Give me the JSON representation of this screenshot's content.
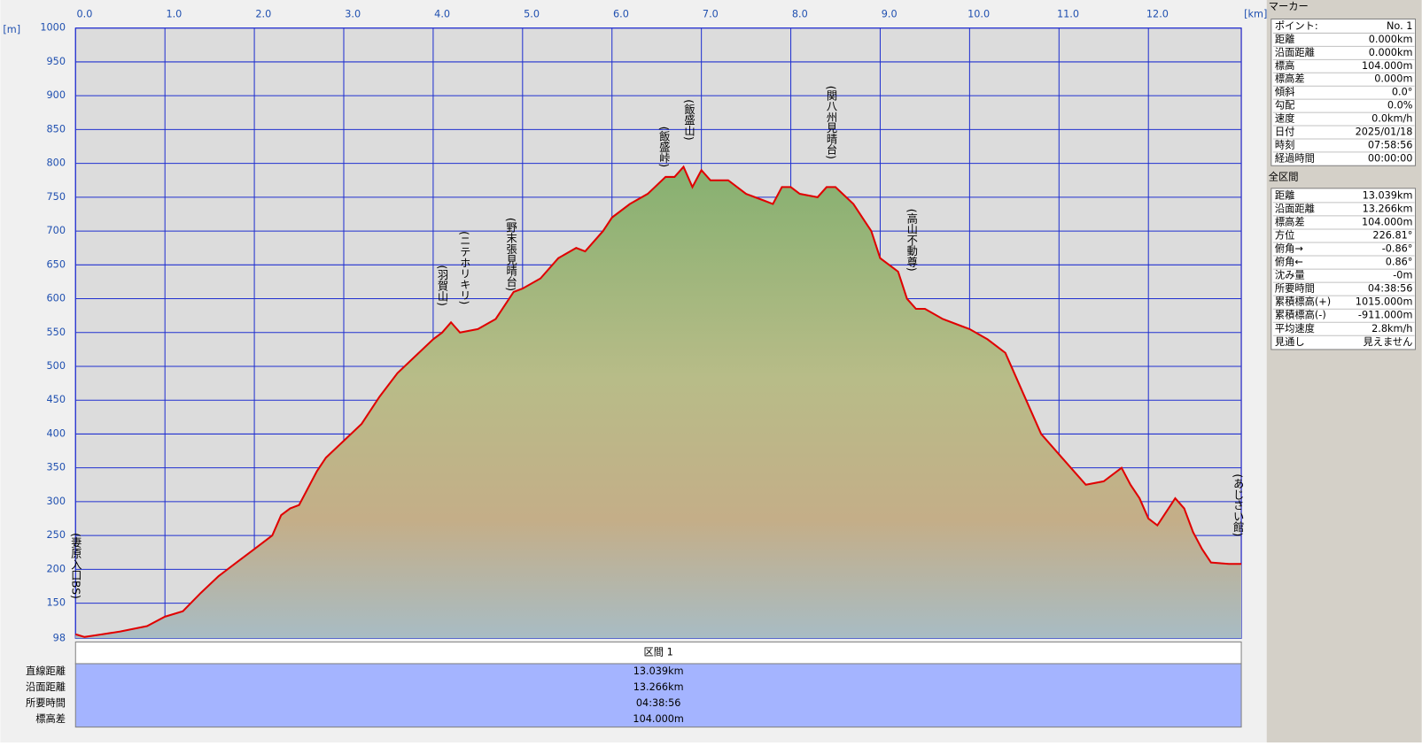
{
  "chart_data": {
    "type": "area",
    "x_unit": "[km]",
    "y_unit": "[m]",
    "series": [
      {
        "name": "標高",
        "color": "#e00000",
        "x": [
          0,
          0.1,
          0.3,
          0.5,
          0.8,
          1.0,
          1.2,
          1.4,
          1.6,
          1.8,
          2.0,
          2.2,
          2.3,
          2.4,
          2.5,
          2.6,
          2.7,
          2.8,
          3.0,
          3.2,
          3.4,
          3.6,
          3.8,
          4.0,
          4.1,
          4.2,
          4.3,
          4.5,
          4.7,
          4.9,
          5.0,
          5.2,
          5.4,
          5.6,
          5.7,
          5.9,
          6.0,
          6.2,
          6.4,
          6.6,
          6.7,
          6.8,
          6.9,
          7.0,
          7.1,
          7.3,
          7.5,
          7.7,
          7.8,
          7.9,
          8.0,
          8.1,
          8.3,
          8.4,
          8.5,
          8.7,
          8.9,
          9.0,
          9.1,
          9.2,
          9.3,
          9.4,
          9.5,
          9.7,
          9.9,
          10.0,
          10.2,
          10.4,
          10.6,
          10.8,
          11.0,
          11.2,
          11.3,
          11.5,
          11.7,
          11.8,
          11.9,
          12.0,
          12.1,
          12.3,
          12.4,
          12.5,
          12.6,
          12.7,
          12.9,
          13.039
        ],
        "values": [
          104,
          100,
          104,
          108,
          116,
          130,
          138,
          165,
          190,
          210,
          230,
          250,
          280,
          290,
          295,
          320,
          345,
          365,
          390,
          415,
          455,
          490,
          515,
          540,
          550,
          565,
          550,
          555,
          570,
          610,
          615,
          630,
          660,
          675,
          670,
          700,
          720,
          740,
          755,
          780,
          780,
          795,
          765,
          790,
          775,
          775,
          755,
          745,
          740,
          765,
          765,
          755,
          750,
          765,
          765,
          740,
          700,
          660,
          650,
          640,
          600,
          585,
          585,
          570,
          560,
          555,
          540,
          520,
          460,
          400,
          370,
          340,
          325,
          330,
          350,
          325,
          305,
          275,
          265,
          305,
          290,
          255,
          230,
          210,
          208,
          208
        ]
      }
    ],
    "xlim": [
      0,
      13.039
    ],
    "ylim": [
      98,
      1000
    ],
    "xticks": [
      {
        "value": 0,
        "label": "0.0"
      },
      {
        "value": 1,
        "label": "1.0"
      },
      {
        "value": 2,
        "label": "2.0"
      },
      {
        "value": 3,
        "label": "3.0"
      },
      {
        "value": 4,
        "label": "4.0"
      },
      {
        "value": 5,
        "label": "5.0"
      },
      {
        "value": 6,
        "label": "6.0"
      },
      {
        "value": 7,
        "label": "7.0"
      },
      {
        "value": 8,
        "label": "8.0"
      },
      {
        "value": 9,
        "label": "9.0"
      },
      {
        "value": 10,
        "label": "10.0"
      },
      {
        "value": 11,
        "label": "11.0"
      },
      {
        "value": 12,
        "label": "12.0"
      }
    ],
    "yticks": [
      98,
      150,
      200,
      250,
      300,
      350,
      400,
      450,
      500,
      550,
      600,
      650,
      700,
      750,
      800,
      850,
      900,
      950,
      1000
    ],
    "grid": true,
    "annotations": [
      {
        "text": "(妻原入口BS)",
        "x": 0
      },
      {
        "text": "(羽賀山)",
        "x": 4.1
      },
      {
        "text": "(ニテホリキリ)",
        "x": 4.35
      },
      {
        "text": "(野末張見晴台)",
        "x": 4.87
      },
      {
        "text": "(飯盛峠)",
        "x": 6.58
      },
      {
        "text": "(飯盛山)",
        "x": 6.86
      },
      {
        "text": "(関八州見晴台)",
        "x": 8.45
      },
      {
        "text": "(高山不動尊)",
        "x": 9.35
      },
      {
        "text": "(あじさい館)",
        "x": 13.0
      }
    ]
  },
  "marker_panel": {
    "title": "マーカー",
    "rows": [
      [
        "ポイント:",
        "No. 1"
      ],
      [
        "距離",
        "0.000km"
      ],
      [
        "沿面距離",
        "0.000km"
      ],
      [
        "標高",
        "104.000m"
      ],
      [
        "標高差",
        "0.000m"
      ],
      [
        "傾斜",
        "0.0°"
      ],
      [
        "勾配",
        "0.0%"
      ],
      [
        "速度",
        "0.0km/h"
      ],
      [
        "日付",
        "2025/01/18"
      ],
      [
        "時刻",
        "07:58:56"
      ],
      [
        "経過時間",
        "00:00:00"
      ]
    ]
  },
  "total_panel": {
    "title": "全区間",
    "rows": [
      [
        "距離",
        "13.039km"
      ],
      [
        "沿面距離",
        "13.266km"
      ],
      [
        "標高差",
        "104.000m"
      ],
      [
        "方位",
        "226.81°"
      ],
      [
        "俯角→",
        "-0.86°"
      ],
      [
        "俯角←",
        "0.86°"
      ],
      [
        "沈み量",
        "-0m"
      ],
      [
        "所要時間",
        "04:38:56"
      ],
      [
        "累積標高(+)",
        "1015.000m"
      ],
      [
        "累積標高(-)",
        "-911.000m"
      ],
      [
        "平均速度",
        "2.8km/h"
      ],
      [
        "見通し",
        "見えません"
      ]
    ]
  },
  "section_table": {
    "header": "区間 1",
    "rows": [
      [
        "直線距離",
        "13.039km"
      ],
      [
        "沿面距離",
        "13.266km"
      ],
      [
        "所要時間",
        "04:38:56"
      ],
      [
        "標高差",
        "104.000m"
      ]
    ]
  }
}
